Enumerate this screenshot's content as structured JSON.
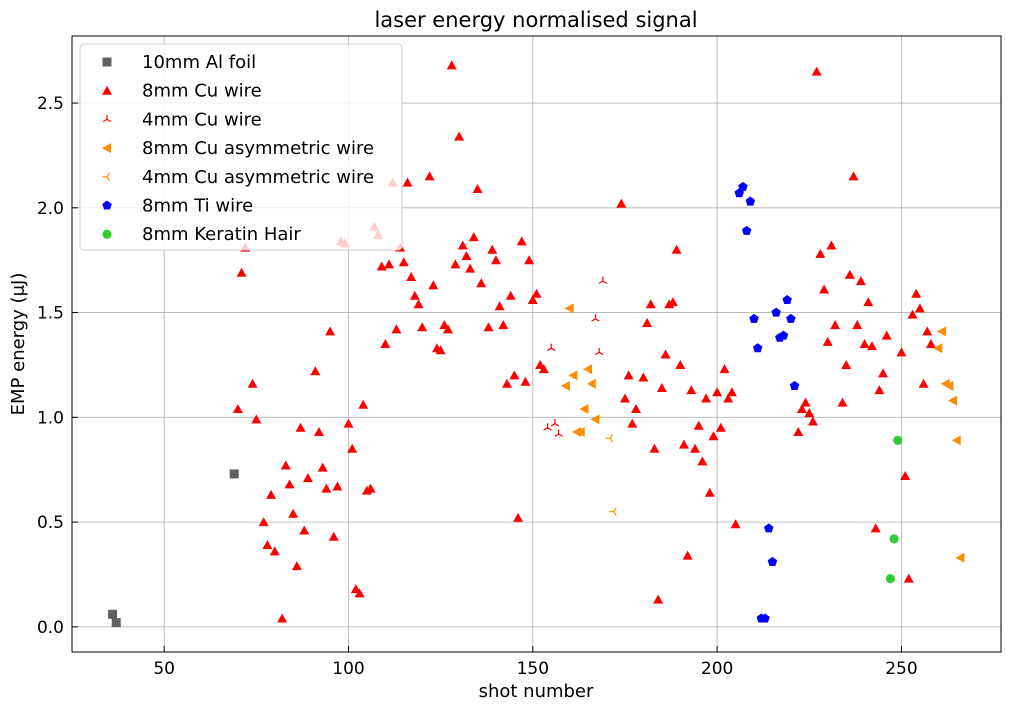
{
  "chart_data": {
    "type": "scatter",
    "title": "laser energy normalised signal",
    "xlabel": "shot number",
    "ylabel": "EMP energy (μJ)",
    "xlim": [
      25,
      277
    ],
    "ylim": [
      -0.12,
      2.82
    ],
    "xticks": [
      50,
      100,
      150,
      200,
      250
    ],
    "yticks": [
      0.0,
      0.5,
      1.0,
      1.5,
      2.0,
      2.5
    ],
    "xtick_labels": [
      "50",
      "100",
      "150",
      "200",
      "250"
    ],
    "ytick_labels": [
      "0.0",
      "0.5",
      "1.0",
      "1.5",
      "2.0",
      "2.5"
    ],
    "grid": true,
    "legend_position": "top-left",
    "series": [
      {
        "name": "10mm Al foil",
        "marker": "square",
        "color": "#606060",
        "points": [
          [
            36,
            0.06
          ],
          [
            37,
            0.02
          ],
          [
            69,
            0.73
          ]
        ]
      },
      {
        "name": "8mm Cu wire",
        "marker": "triangle-up",
        "color": "#ff0000",
        "points": [
          [
            70,
            1.04
          ],
          [
            71,
            1.69
          ],
          [
            72,
            1.81
          ],
          [
            74,
            1.16
          ],
          [
            75,
            0.99
          ],
          [
            77,
            0.5
          ],
          [
            78,
            0.39
          ],
          [
            79,
            0.63
          ],
          [
            80,
            0.36
          ],
          [
            82,
            0.04
          ],
          [
            83,
            0.77
          ],
          [
            84,
            0.68
          ],
          [
            85,
            0.54
          ],
          [
            86,
            0.29
          ],
          [
            87,
            0.95
          ],
          [
            88,
            0.46
          ],
          [
            89,
            0.71
          ],
          [
            91,
            1.22
          ],
          [
            92,
            0.93
          ],
          [
            93,
            0.76
          ],
          [
            94,
            0.66
          ],
          [
            95,
            1.41
          ],
          [
            96,
            0.43
          ],
          [
            97,
            0.67
          ],
          [
            98,
            1.84
          ],
          [
            99,
            1.83
          ],
          [
            100,
            0.97
          ],
          [
            101,
            0.85
          ],
          [
            102,
            0.18
          ],
          [
            103,
            0.16
          ],
          [
            104,
            1.06
          ],
          [
            105,
            0.65
          ],
          [
            106,
            0.66
          ],
          [
            107,
            1.91
          ],
          [
            108,
            1.87
          ],
          [
            109,
            1.72
          ],
          [
            110,
            1.35
          ],
          [
            111,
            1.73
          ],
          [
            112,
            2.12
          ],
          [
            113,
            1.42
          ],
          [
            114,
            1.81
          ],
          [
            115,
            1.74
          ],
          [
            116,
            2.12
          ],
          [
            117,
            1.67
          ],
          [
            118,
            1.58
          ],
          [
            119,
            1.54
          ],
          [
            120,
            1.43
          ],
          [
            122,
            2.15
          ],
          [
            123,
            1.63
          ],
          [
            124,
            1.33
          ],
          [
            125,
            1.32
          ],
          [
            126,
            1.44
          ],
          [
            127,
            1.42
          ],
          [
            128,
            2.68
          ],
          [
            129,
            1.73
          ],
          [
            130,
            2.34
          ],
          [
            131,
            1.82
          ],
          [
            132,
            1.77
          ],
          [
            133,
            1.71
          ],
          [
            134,
            1.86
          ],
          [
            135,
            2.09
          ],
          [
            136,
            1.64
          ],
          [
            138,
            1.43
          ],
          [
            139,
            1.8
          ],
          [
            140,
            1.75
          ],
          [
            141,
            1.53
          ],
          [
            142,
            1.44
          ],
          [
            143,
            1.16
          ],
          [
            144,
            1.58
          ],
          [
            145,
            1.2
          ],
          [
            146,
            0.52
          ],
          [
            147,
            1.84
          ],
          [
            148,
            1.17
          ],
          [
            149,
            1.75
          ],
          [
            150,
            1.56
          ],
          [
            151,
            1.59
          ],
          [
            152,
            1.25
          ],
          [
            153,
            1.23
          ],
          [
            174,
            2.02
          ],
          [
            175,
            1.09
          ],
          [
            176,
            1.2
          ],
          [
            177,
            0.97
          ],
          [
            178,
            1.04
          ],
          [
            180,
            1.19
          ],
          [
            181,
            1.45
          ],
          [
            182,
            1.54
          ],
          [
            183,
            0.85
          ],
          [
            184,
            0.13
          ],
          [
            185,
            1.14
          ],
          [
            186,
            1.3
          ],
          [
            187,
            1.54
          ],
          [
            188,
            1.55
          ],
          [
            189,
            1.8
          ],
          [
            190,
            1.25
          ],
          [
            191,
            0.87
          ],
          [
            192,
            0.34
          ],
          [
            193,
            1.13
          ],
          [
            194,
            0.85
          ],
          [
            195,
            0.96
          ],
          [
            196,
            0.79
          ],
          [
            197,
            1.09
          ],
          [
            198,
            0.64
          ],
          [
            199,
            0.91
          ],
          [
            200,
            1.12
          ],
          [
            201,
            0.95
          ],
          [
            202,
            1.23
          ],
          [
            203,
            1.09
          ],
          [
            204,
            1.12
          ],
          [
            205,
            0.49
          ],
          [
            222,
            0.93
          ],
          [
            223,
            1.04
          ],
          [
            224,
            1.07
          ],
          [
            225,
            1.02
          ],
          [
            226,
            0.98
          ],
          [
            227,
            2.65
          ],
          [
            228,
            1.78
          ],
          [
            229,
            1.61
          ],
          [
            230,
            1.36
          ],
          [
            231,
            1.82
          ],
          [
            232,
            1.44
          ],
          [
            234,
            1.07
          ],
          [
            235,
            1.25
          ],
          [
            236,
            1.68
          ],
          [
            237,
            2.15
          ],
          [
            238,
            1.44
          ],
          [
            239,
            1.65
          ],
          [
            240,
            1.35
          ],
          [
            241,
            1.55
          ],
          [
            242,
            1.34
          ],
          [
            243,
            0.47
          ],
          [
            244,
            1.13
          ],
          [
            245,
            1.21
          ],
          [
            246,
            1.39
          ],
          [
            250,
            1.31
          ],
          [
            251,
            0.72
          ],
          [
            252,
            0.23
          ],
          [
            253,
            1.49
          ],
          [
            254,
            1.59
          ],
          [
            255,
            1.52
          ],
          [
            256,
            1.16
          ],
          [
            257,
            1.41
          ],
          [
            258,
            1.35
          ]
        ]
      },
      {
        "name": "4mm Cu wire",
        "marker": "tri-down",
        "color": "#ff0000",
        "points": [
          [
            154,
            0.95
          ],
          [
            155,
            1.33
          ],
          [
            156,
            0.97
          ],
          [
            157,
            0.92
          ],
          [
            167,
            1.47
          ],
          [
            168,
            1.31
          ],
          [
            169,
            1.65
          ]
        ]
      },
      {
        "name": "8mm Cu asymmetric wire",
        "marker": "triangle-left",
        "color": "#ff8c00",
        "points": [
          [
            159,
            1.15
          ],
          [
            160,
            1.52
          ],
          [
            161,
            1.2
          ],
          [
            162,
            0.93
          ],
          [
            163,
            0.93
          ],
          [
            164,
            1.04
          ],
          [
            165,
            1.23
          ],
          [
            166,
            1.16
          ],
          [
            167,
            0.99
          ],
          [
            260,
            1.33
          ],
          [
            261,
            1.41
          ],
          [
            262,
            1.16
          ],
          [
            263,
            1.15
          ],
          [
            264,
            1.08
          ],
          [
            265,
            0.89
          ],
          [
            266,
            0.33
          ]
        ]
      },
      {
        "name": "4mm Cu asymmetric wire",
        "marker": "tri-left",
        "color": "#ff8c00",
        "points": [
          [
            171,
            0.9
          ],
          [
            172,
            0.55
          ]
        ]
      },
      {
        "name": "8mm Ti wire",
        "marker": "pentagon",
        "color": "#0000ff",
        "points": [
          [
            206,
            2.07
          ],
          [
            207,
            2.1
          ],
          [
            208,
            1.89
          ],
          [
            209,
            2.03
          ],
          [
            210,
            1.47
          ],
          [
            211,
            1.33
          ],
          [
            212,
            0.04
          ],
          [
            213,
            0.04
          ],
          [
            214,
            0.47
          ],
          [
            215,
            0.31
          ],
          [
            216,
            1.5
          ],
          [
            217,
            1.38
          ],
          [
            218,
            1.39
          ],
          [
            219,
            1.56
          ],
          [
            220,
            1.47
          ],
          [
            221,
            1.15
          ]
        ]
      },
      {
        "name": "8mm Keratin Hair",
        "marker": "circle",
        "color": "#32cd32",
        "points": [
          [
            247,
            0.23
          ],
          [
            248,
            0.42
          ],
          [
            249,
            0.89
          ]
        ]
      }
    ]
  }
}
